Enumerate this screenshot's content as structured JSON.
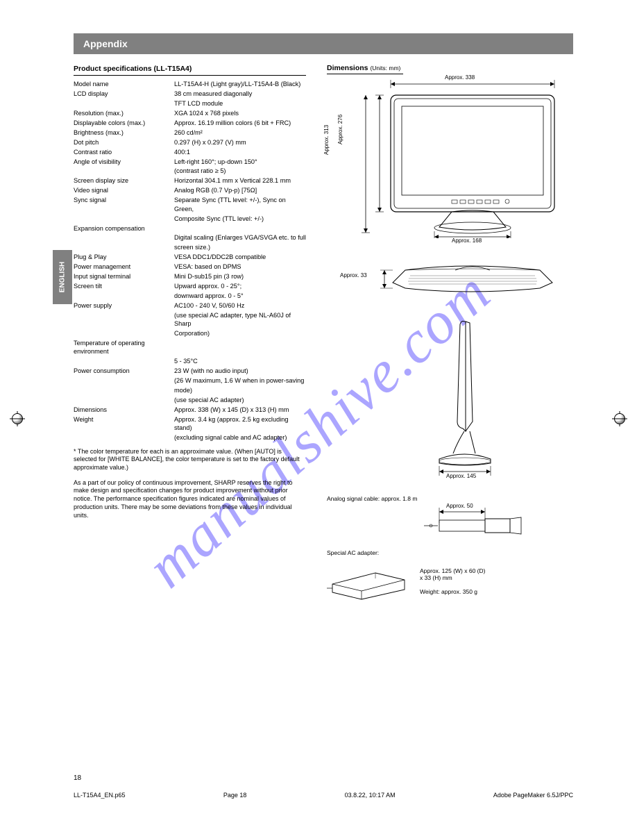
{
  "section_title": "Appendix",
  "side_tab": "ENGLISH",
  "watermark": "manualshive.com",
  "left": {
    "subhead": "Product specifications (LL-T15A4)",
    "rows": [
      {
        "l": "Model name",
        "v": "LL-T15A4-H (Light gray)/LL-T15A4-B (Black)"
      },
      {
        "l": "LCD display",
        "v": "38 cm measured diagonally"
      },
      {
        "l": "",
        "v": "TFT LCD module"
      },
      {
        "l": "Resolution (max.)",
        "v": "XGA 1024 x 768 pixels"
      },
      {
        "l": "Displayable colors (max.)",
        "v": "Approx. 16.19 million colors (6 bit + FRC)"
      },
      {
        "l": "Brightness (max.)",
        "v": "260 cd/m²"
      },
      {
        "l": "Dot pitch",
        "v": "0.297 (H) x 0.297 (V) mm"
      },
      {
        "l": "Contrast ratio",
        "v": "400:1"
      },
      {
        "l": "Angle of visibility",
        "v": "Left-right 160°; up-down 150°"
      },
      {
        "l": "",
        "v": "(contrast ratio ≥ 5)"
      },
      {
        "l": "Screen display size",
        "v": "Horizontal 304.1 mm x Vertical 228.1 mm"
      },
      {
        "l": "Video signal",
        "v": "Analog RGB (0.7 Vp-p) [75Ω]"
      },
      {
        "l": "Sync signal",
        "v": "Separate Sync (TTL level: +/-), Sync on Green,"
      },
      {
        "l": "",
        "v": "Composite Sync (TTL level: +/-)"
      },
      {
        "l": "Expansion compensation",
        "v": ""
      },
      {
        "l": "",
        "v": "Digital scaling (Enlarges VGA/SVGA etc. to full"
      },
      {
        "l": "",
        "v": "screen size.)"
      },
      {
        "l": "Plug & Play",
        "v": "VESA DDC1/DDC2B compatible"
      },
      {
        "l": "Power management",
        "v": "VESA: based on DPMS"
      },
      {
        "l": "Input signal terminal",
        "v": "Mini D-sub15 pin (3 row)"
      },
      {
        "l": "Screen tilt",
        "v": "Upward approx. 0 - 25°;"
      },
      {
        "l": "",
        "v": "downward approx. 0 - 5°"
      },
      {
        "l": "Power supply",
        "v": "AC100 - 240 V, 50/60 Hz"
      },
      {
        "l": "",
        "v": "(use special AC adapter, type NL-A60J of Sharp"
      },
      {
        "l": "",
        "v": "Corporation)"
      },
      {
        "l": "Temperature of operating environment",
        "v": ""
      },
      {
        "l": "",
        "v": "5 - 35°C"
      },
      {
        "l": "Power consumption",
        "v": "23 W (with no audio input)"
      },
      {
        "l": "",
        "v": "(26 W maximum, 1.6 W when in power-saving"
      },
      {
        "l": "",
        "v": "mode)"
      },
      {
        "l": "",
        "v": "(use special AC adapter)"
      },
      {
        "l": "Dimensions",
        "v": "Approx. 338 (W) x 145 (D) x 313 (H) mm"
      },
      {
        "l": "Weight",
        "v": "Approx. 3.4 kg (approx. 2.5 kg excluding stand)"
      },
      {
        "l": "",
        "v": "(excluding signal cable and AC adapter)"
      }
    ],
    "note1_head": "*",
    "note1": "The color temperature for each is an approximate value. (When [AUTO] is selected for [WHITE BALANCE], the color temperature is set to the factory default approximate value.)",
    "note2": "As a part of our policy of continuous improvement, SHARP reserves the right to make design and specification changes for product improvement without prior notice. The performance specification figures indicated are nominal values of production units. There may be some deviations from these values in individual units."
  },
  "right": {
    "subhead": "Dimensions",
    "unit_note": "(Units: mm)",
    "front": {
      "width": "Approx. 338",
      "height_panel": "Approx. 276",
      "height_total": "Approx. 313",
      "base_width": "Approx. 168"
    },
    "top": {
      "height": "Approx. 33"
    },
    "side": {
      "depth": "Approx. 145"
    },
    "cable": {
      "title": "Analog signal cable:",
      "length": "approx. 1.8 m",
      "dim_width": "Approx. 50"
    },
    "adapter": {
      "title": "Special AC adapter:",
      "dims": "Approx. 125 (W) x 60 (D)\nx 33 (H) mm",
      "weight": "Weight: approx. 350 g"
    }
  },
  "page_num": "18",
  "footer_left": "LL-T15A4_EN.p65",
  "footer_center": "Page 18",
  "footer_right": "03.8.22, 10:17 AM",
  "footer_app": "Adobe PageMaker 6.5J/PPC"
}
